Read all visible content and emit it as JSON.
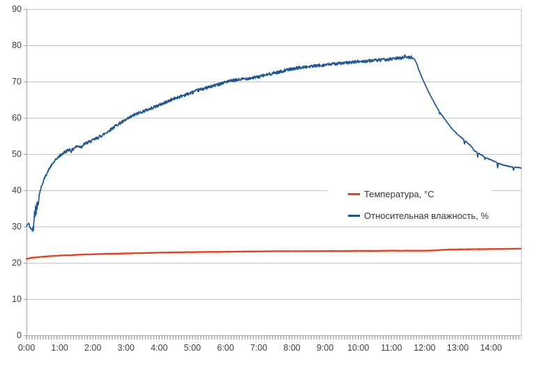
{
  "figure": {
    "background": "#ffffff",
    "text_color": "#3f3f3f",
    "gridline_color": "#c6c6c6",
    "axis_color": "#a3a3a3"
  },
  "chart_data": {
    "type": "line",
    "title": "",
    "xlabel": "",
    "ylabel": "",
    "grid": true,
    "legend_position": "center-right, overlapping plot",
    "xlim_hours": [
      0,
      14.9
    ],
    "ylim": [
      0,
      90
    ],
    "x_tick_labels": [
      "0:00",
      "1:00",
      "2:00",
      "3:00",
      "4:00",
      "5:00",
      "6:00",
      "7:00",
      "8:00",
      "9:00",
      "10:00",
      "11:00",
      "12:00",
      "13:00",
      "14:00"
    ],
    "y_tick_labels": [
      "90",
      "80",
      "70",
      "60",
      "50",
      "40",
      "30",
      "20",
      "10",
      "0"
    ],
    "series": [
      {
        "name": "Температура, °C",
        "color": "#ed3b18",
        "stroke_width": 2.2,
        "noise_amp": 0.05,
        "points": [
          [
            0,
            21.2
          ],
          [
            0.05,
            21.1
          ],
          [
            0.12,
            21.4
          ],
          [
            0.3,
            21.5
          ],
          [
            0.5,
            21.7
          ],
          [
            0.75,
            21.85
          ],
          [
            1.0,
            22.0
          ],
          [
            1.25,
            22.1
          ],
          [
            1.5,
            22.2
          ],
          [
            1.75,
            22.3
          ],
          [
            2.0,
            22.35
          ],
          [
            2.25,
            22.45
          ],
          [
            2.5,
            22.5
          ],
          [
            2.75,
            22.55
          ],
          [
            3.0,
            22.6
          ],
          [
            3.25,
            22.65
          ],
          [
            3.5,
            22.7
          ],
          [
            3.75,
            22.75
          ],
          [
            4.0,
            22.8
          ],
          [
            4.5,
            22.9
          ],
          [
            5.0,
            22.95
          ],
          [
            5.5,
            23.0
          ],
          [
            6.0,
            23.05
          ],
          [
            6.5,
            23.1
          ],
          [
            7.0,
            23.15
          ],
          [
            7.5,
            23.2
          ],
          [
            8.0,
            23.2
          ],
          [
            8.5,
            23.2
          ],
          [
            9.0,
            23.25
          ],
          [
            9.5,
            23.25
          ],
          [
            10.0,
            23.3
          ],
          [
            10.5,
            23.3
          ],
          [
            11.0,
            23.35
          ],
          [
            11.5,
            23.35
          ],
          [
            12.0,
            23.35
          ],
          [
            12.25,
            23.4
          ],
          [
            12.5,
            23.55
          ],
          [
            12.75,
            23.65
          ],
          [
            13.0,
            23.7
          ],
          [
            13.5,
            23.75
          ],
          [
            14.0,
            23.8
          ],
          [
            14.5,
            23.85
          ],
          [
            14.9,
            23.9
          ]
        ]
      },
      {
        "name": "Относительная влажность, %",
        "color": "#1f5796",
        "stroke_width": 1.7,
        "noise_segments": [
          [
            0,
            0.18,
            0.12
          ],
          [
            0.18,
            0.42,
            0.7
          ],
          [
            0.42,
            1.0,
            0.3
          ],
          [
            1.0,
            11.65,
            0.42
          ],
          [
            11.65,
            14.92,
            0.1
          ]
        ],
        "glitches": [
          [
            12.45,
            -0.7
          ],
          [
            13.2,
            -1.0
          ],
          [
            13.6,
            -1.2
          ],
          [
            13.82,
            -0.8
          ],
          [
            14.2,
            -1.3
          ],
          [
            14.68,
            -0.9
          ]
        ],
        "points": [
          [
            0,
            30.1
          ],
          [
            0.04,
            30.7
          ],
          [
            0.07,
            30.9
          ],
          [
            0.1,
            29.8
          ],
          [
            0.14,
            29.3
          ],
          [
            0.18,
            29.4
          ],
          [
            0.21,
            29.6
          ],
          [
            0.23,
            32.5
          ],
          [
            0.245,
            35.5
          ],
          [
            0.26,
            33.2
          ],
          [
            0.275,
            36.2
          ],
          [
            0.29,
            34.0
          ],
          [
            0.305,
            36.6
          ],
          [
            0.32,
            34.8
          ],
          [
            0.335,
            37.2
          ],
          [
            0.35,
            36.0
          ],
          [
            0.37,
            38.0
          ],
          [
            0.4,
            39.5
          ],
          [
            0.45,
            41.0
          ],
          [
            0.5,
            42.3
          ],
          [
            0.55,
            43.5
          ],
          [
            0.6,
            44.4
          ],
          [
            0.7,
            46.2
          ],
          [
            0.8,
            47.5
          ],
          [
            0.9,
            48.6
          ],
          [
            1.0,
            49.5
          ],
          [
            1.1,
            50.2
          ],
          [
            1.2,
            50.8
          ],
          [
            1.3,
            51.3
          ],
          [
            1.35,
            50.8
          ],
          [
            1.45,
            51.8
          ],
          [
            1.55,
            52.2
          ],
          [
            1.65,
            52.0
          ],
          [
            1.75,
            52.8
          ],
          [
            1.85,
            53.2
          ],
          [
            2.0,
            53.8
          ],
          [
            2.15,
            54.5
          ],
          [
            2.3,
            55.3
          ],
          [
            2.45,
            56.2
          ],
          [
            2.6,
            57.2
          ],
          [
            2.75,
            58.2
          ],
          [
            2.9,
            58.9
          ],
          [
            3.0,
            59.4
          ],
          [
            3.1,
            60.0
          ],
          [
            3.25,
            60.8
          ],
          [
            3.4,
            61.4
          ],
          [
            3.55,
            61.9
          ],
          [
            3.7,
            62.4
          ],
          [
            3.85,
            63.0
          ],
          [
            4.0,
            63.5
          ],
          [
            4.2,
            64.3
          ],
          [
            4.4,
            65.1
          ],
          [
            4.6,
            65.8
          ],
          [
            4.8,
            66.4
          ],
          [
            5.0,
            67.0
          ],
          [
            5.2,
            67.7
          ],
          [
            5.4,
            68.2
          ],
          [
            5.6,
            68.7
          ],
          [
            5.8,
            69.3
          ],
          [
            6.0,
            69.9
          ],
          [
            6.2,
            70.2
          ],
          [
            6.4,
            70.5
          ],
          [
            6.6,
            70.8
          ],
          [
            6.8,
            71.0
          ],
          [
            7.0,
            71.3
          ],
          [
            7.2,
            71.8
          ],
          [
            7.4,
            72.2
          ],
          [
            7.6,
            72.6
          ],
          [
            7.8,
            73.1
          ],
          [
            8.0,
            73.5
          ],
          [
            8.2,
            73.8
          ],
          [
            8.4,
            74.0
          ],
          [
            8.6,
            74.2
          ],
          [
            8.8,
            74.4
          ],
          [
            9.0,
            74.6
          ],
          [
            9.2,
            74.8
          ],
          [
            9.4,
            75.0
          ],
          [
            9.6,
            75.1
          ],
          [
            9.8,
            75.3
          ],
          [
            10.0,
            75.5
          ],
          [
            10.2,
            75.6
          ],
          [
            10.4,
            75.8
          ],
          [
            10.6,
            75.9
          ],
          [
            10.8,
            76.0
          ],
          [
            11.0,
            76.2
          ],
          [
            11.15,
            76.4
          ],
          [
            11.3,
            76.5
          ],
          [
            11.4,
            77.0
          ],
          [
            11.5,
            76.6
          ],
          [
            11.6,
            76.7
          ],
          [
            11.68,
            76.3
          ],
          [
            11.75,
            75.3
          ],
          [
            11.8,
            73.8
          ],
          [
            11.9,
            71.5
          ],
          [
            12.0,
            69.5
          ],
          [
            12.1,
            67.5
          ],
          [
            12.2,
            65.7
          ],
          [
            12.3,
            64.0
          ],
          [
            12.4,
            62.4
          ],
          [
            12.5,
            61.0
          ],
          [
            12.6,
            59.7
          ],
          [
            12.7,
            58.5
          ],
          [
            12.8,
            57.3
          ],
          [
            12.9,
            56.3
          ],
          [
            13.0,
            55.4
          ],
          [
            13.1,
            54.6
          ],
          [
            13.2,
            53.8
          ],
          [
            13.3,
            53.0
          ],
          [
            13.4,
            52.2
          ],
          [
            13.5,
            50.9
          ],
          [
            13.6,
            50.4
          ],
          [
            13.7,
            49.8
          ],
          [
            13.8,
            49.3
          ],
          [
            13.9,
            48.8
          ],
          [
            14.0,
            48.4
          ],
          [
            14.1,
            48.0
          ],
          [
            14.2,
            47.6
          ],
          [
            14.3,
            47.2
          ],
          [
            14.4,
            46.9
          ],
          [
            14.5,
            46.7
          ],
          [
            14.6,
            46.5
          ],
          [
            14.7,
            46.4
          ],
          [
            14.8,
            46.3
          ],
          [
            14.9,
            46.2
          ]
        ]
      }
    ]
  },
  "legend": {
    "items": [
      {
        "label": "Температура, °C",
        "color": "#ed3b18"
      },
      {
        "label": "Относительная влажность, %",
        "color": "#1f5796"
      }
    ]
  }
}
